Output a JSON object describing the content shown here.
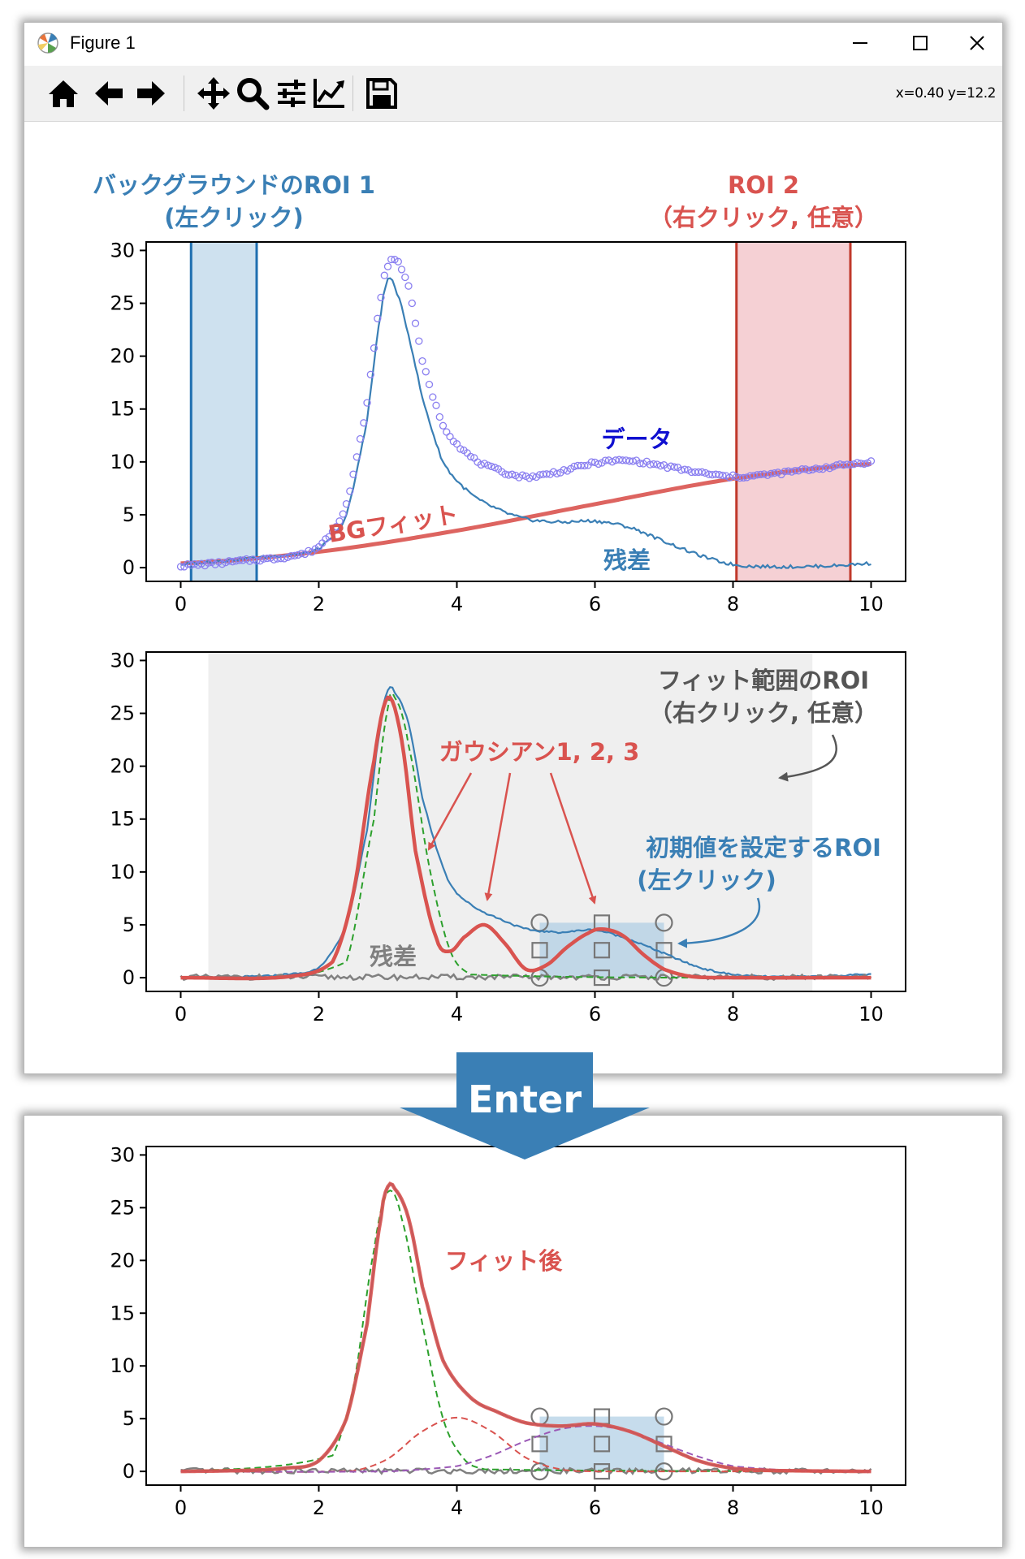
{
  "window": {
    "title": "Figure 1",
    "coords": "x=0.40 y=12.2"
  },
  "toolbar": {
    "icons": [
      "home-icon",
      "back-icon",
      "forward-icon",
      "pan-icon",
      "zoom-icon",
      "configure-icon",
      "edit-axis-icon",
      "save-icon"
    ]
  },
  "annotations": {
    "roi1_line1": "バックグラウンドのROI 1",
    "roi1_line2": "(左クリック)",
    "roi2_line1": "ROI 2",
    "roi2_line2": "（右クリック, 任意）",
    "data_label": "データ",
    "bg_fit_label": "BGフィット",
    "residual_label": "残差",
    "fit_roi_line1": "フィット範囲のROI",
    "fit_roi_line2": "（右クリック, 任意）",
    "gauss_label": "ガウシアン1, 2, 3",
    "init_roi_line1": "初期値を設定するROI",
    "init_roi_line2": "(左クリック)",
    "residual_label2": "残差",
    "enter": "Enter",
    "after_fit": "フィット後"
  },
  "colors": {
    "blue": "#3a7fb5",
    "red": "#d9534f",
    "roi_blue": "#aecde4",
    "roi_red": "#f2c4c9",
    "fit_range": "#efefef",
    "purple_marker": "#8a7ff0",
    "green": "#2ca02c",
    "purple": "#9b59b6",
    "gray": "#808080"
  },
  "chart_data": [
    {
      "type": "line",
      "xlim": [
        -0.5,
        10.5
      ],
      "ylim": [
        -1.3,
        30.8
      ],
      "xticks": [
        0,
        2,
        4,
        6,
        8,
        10
      ],
      "yticks": [
        0,
        5,
        10,
        15,
        20,
        25,
        30
      ],
      "roi1": [
        0.15,
        1.1
      ],
      "roi2": [
        8.05,
        9.7
      ],
      "series": [
        {
          "x": [
            0,
            0.5,
            1,
            1.5,
            2,
            2.4,
            2.7,
            2.9,
            3.0,
            3.1,
            3.3,
            3.5,
            3.8,
            4.2,
            4.6,
            5.0,
            5.5,
            6.0,
            6.5,
            7.0,
            7.5,
            8.0,
            8.5,
            9.0,
            9.5,
            10.0
          ],
          "values": [
            0.2,
            0.4,
            0.7,
            1.0,
            2.0,
            6.0,
            15.5,
            25.5,
            28.5,
            29.2,
            26.5,
            19.5,
            13.5,
            10.5,
            9.2,
            8.6,
            9.1,
            9.9,
            10.1,
            9.6,
            9.0,
            8.6,
            8.8,
            9.2,
            9.6,
            10.0
          ]
        },
        {
          "x": [
            0,
            0.5,
            1,
            1.5,
            2,
            2.4,
            2.7,
            2.9,
            3.0,
            3.1,
            3.3,
            3.5,
            3.8,
            4.2,
            4.6,
            5.0,
            5.5,
            6.0,
            6.5,
            7.0,
            7.5,
            8.0,
            8.5,
            9.0,
            9.5,
            10.0
          ],
          "values": [
            0.3,
            0.6,
            0.9,
            1.2,
            1.8,
            5.0,
            14.0,
            24.0,
            27.2,
            26.5,
            22.0,
            16.0,
            10.0,
            7.0,
            5.5,
            4.6,
            4.3,
            4.4,
            3.8,
            2.5,
            1.2,
            0.3,
            0.1,
            0.1,
            0.2,
            0.4
          ]
        },
        {
          "x": [
            0,
            2,
            4,
            6,
            8,
            10
          ],
          "values": [
            0.4,
            1.5,
            3.5,
            6.0,
            8.4,
            9.8
          ]
        }
      ]
    },
    {
      "type": "line",
      "xlim": [
        -0.5,
        10.5
      ],
      "ylim": [
        -1.3,
        30.8
      ],
      "xticks": [
        0,
        2,
        4,
        6,
        8,
        10
      ],
      "yticks": [
        0,
        5,
        10,
        15,
        20,
        25,
        30
      ],
      "fit_range": [
        0.4,
        9.15
      ],
      "init_roi": {
        "x": [
          5.2,
          7.0
        ],
        "y": [
          0,
          5.2
        ]
      },
      "series": [
        {
          "x": [
            0,
            1,
            1.5,
            2,
            2.4,
            2.7,
            2.9,
            3.0,
            3.1,
            3.3,
            3.5,
            3.8,
            4.0,
            4.3,
            4.6,
            5.0,
            5.5,
            6.0,
            6.5,
            7.0,
            7.5,
            8.0,
            8.5,
            9.0,
            10.0
          ],
          "values": [
            0,
            0.1,
            0.3,
            1.0,
            5.0,
            14.0,
            24.0,
            27.2,
            27.0,
            24.0,
            17.0,
            10.5,
            8.0,
            6.5,
            5.6,
            4.6,
            4.3,
            4.5,
            3.6,
            2.3,
            1.0,
            0.3,
            0.1,
            0.1,
            0.3
          ]
        },
        {
          "x": [
            0,
            1.5,
            2.2,
            2.5,
            2.8,
            3.0,
            3.2,
            3.4,
            3.7,
            3.9,
            4.1,
            4.4,
            4.7,
            5.0,
            5.3,
            5.6,
            5.9,
            6.1,
            6.4,
            6.7,
            7.0,
            7.4,
            8.0,
            10.0
          ],
          "values": [
            0,
            0.05,
            1.5,
            8.0,
            20.5,
            26.5,
            22.5,
            12.0,
            3.8,
            2.5,
            3.8,
            5.0,
            3.2,
            0.8,
            1.2,
            2.9,
            4.2,
            4.6,
            4.0,
            2.2,
            0.8,
            0.1,
            0,
            0
          ]
        },
        {
          "x": [
            0,
            2.4,
            2.8,
            3.0,
            3.1,
            3.3,
            3.6,
            3.9,
            4.2,
            10.0
          ],
          "values": [
            0,
            1.5,
            15.0,
            25.5,
            26.5,
            22.0,
            10.5,
            2.6,
            0.3,
            0
          ]
        }
      ]
    },
    {
      "type": "line",
      "xlim": [
        -0.5,
        10.5
      ],
      "ylim": [
        -1.3,
        30.8
      ],
      "xticks": [
        0,
        2,
        4,
        6,
        8,
        10
      ],
      "yticks": [
        0,
        5,
        10,
        15,
        20,
        25,
        30
      ],
      "init_roi": {
        "x": [
          5.2,
          7.0
        ],
        "y": [
          0,
          5.2
        ]
      },
      "series": [
        {
          "x": [
            0,
            1,
            1.5,
            2,
            2.4,
            2.7,
            2.9,
            3.0,
            3.1,
            3.3,
            3.5,
            3.8,
            4.2,
            4.6,
            5.0,
            5.5,
            6.0,
            6.5,
            7.0,
            7.5,
            8.0,
            8.5,
            9.0,
            10.0
          ],
          "values": [
            0,
            0.1,
            0.3,
            1.0,
            5.0,
            14.0,
            24.0,
            27.0,
            26.8,
            24.0,
            17.5,
            10.5,
            7.0,
            5.6,
            4.6,
            4.3,
            4.5,
            3.8,
            2.4,
            1.0,
            0.3,
            0.1,
            0.05,
            0
          ]
        },
        {
          "x": [
            0,
            2.2,
            2.5,
            2.8,
            3.0,
            3.2,
            3.5,
            3.8,
            4.1,
            4.4,
            10.0
          ],
          "values": [
            0,
            1.5,
            8.0,
            21.0,
            26.5,
            24.0,
            14.0,
            5.0,
            1.2,
            0.2,
            0
          ]
        },
        {
          "x": [
            0,
            2.5,
            3.0,
            3.5,
            4.0,
            4.5,
            5.0,
            5.5,
            6.0
          ],
          "values": [
            0,
            0.05,
            1.2,
            3.8,
            5.1,
            3.8,
            1.3,
            0.2,
            0
          ]
        },
        {
          "x": [
            0,
            3,
            4,
            4.5,
            5,
            5.5,
            6,
            6.5,
            7,
            7.5,
            8,
            9,
            10
          ],
          "values": [
            0,
            0,
            0.5,
            1.5,
            2.9,
            4.0,
            4.3,
            3.8,
            2.6,
            1.4,
            0.5,
            0.05,
            0
          ]
        }
      ]
    }
  ]
}
